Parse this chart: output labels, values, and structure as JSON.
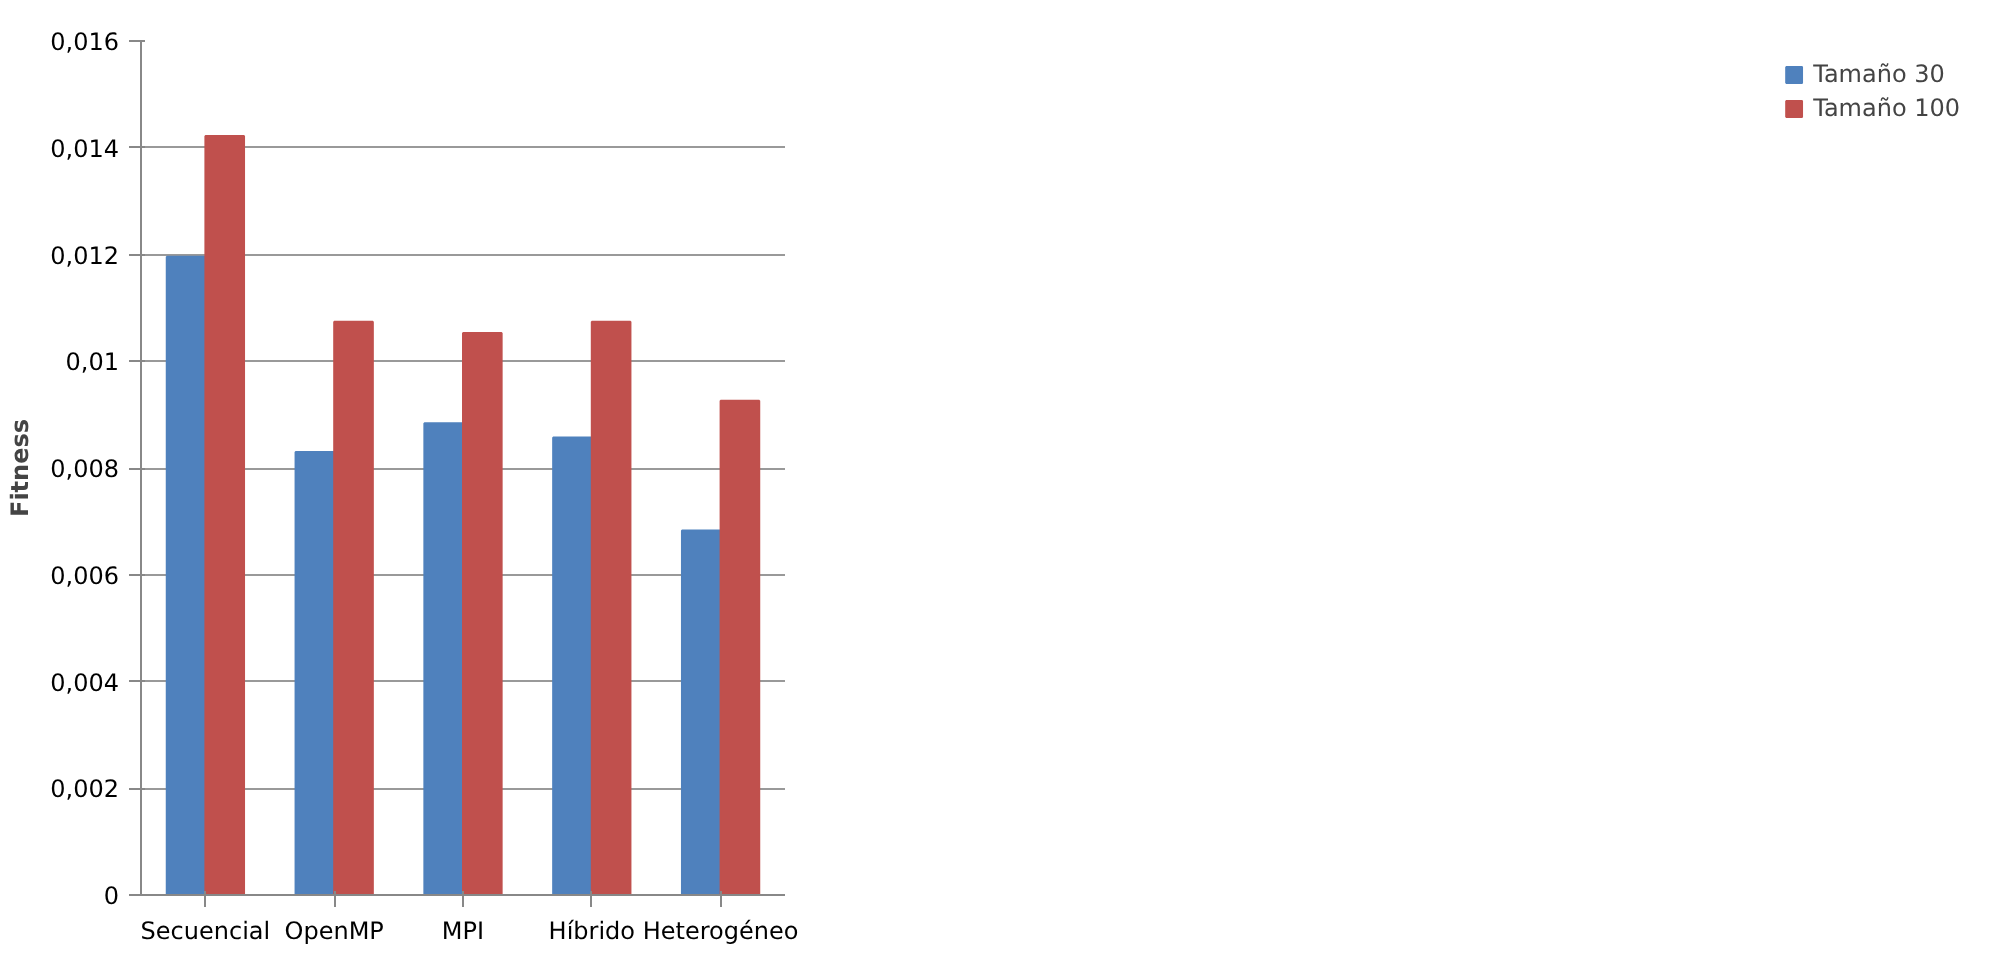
{
  "chart_data": {
    "type": "bar",
    "ylabel": "Fitness",
    "categories": [
      "Secuencial",
      "OpenMP",
      "MPI",
      "Híbrido",
      "Heterogéneo"
    ],
    "series": [
      {
        "name": "Tamaño 30",
        "color": "#4f81bd",
        "values": [
          0.01196,
          0.0083,
          0.00884,
          0.00857,
          0.00683
        ]
      },
      {
        "name": "Tamaño 100",
        "color": "#c0504d",
        "values": [
          0.01422,
          0.01074,
          0.01053,
          0.01074,
          0.00926
        ]
      }
    ],
    "ylim": [
      0,
      0.016
    ],
    "yticks": [
      {
        "value": 0,
        "label": "0"
      },
      {
        "value": 0.002,
        "label": "0,002"
      },
      {
        "value": 0.004,
        "label": "0,004"
      },
      {
        "value": 0.006,
        "label": "0,006"
      },
      {
        "value": 0.008,
        "label": "0,008"
      },
      {
        "value": 0.01,
        "label": "0,01"
      },
      {
        "value": 0.012,
        "label": "0,012"
      },
      {
        "value": 0.014,
        "label": "0,014"
      },
      {
        "value": 0.016,
        "label": "0,016"
      }
    ],
    "grid": "y",
    "legend": "right"
  }
}
